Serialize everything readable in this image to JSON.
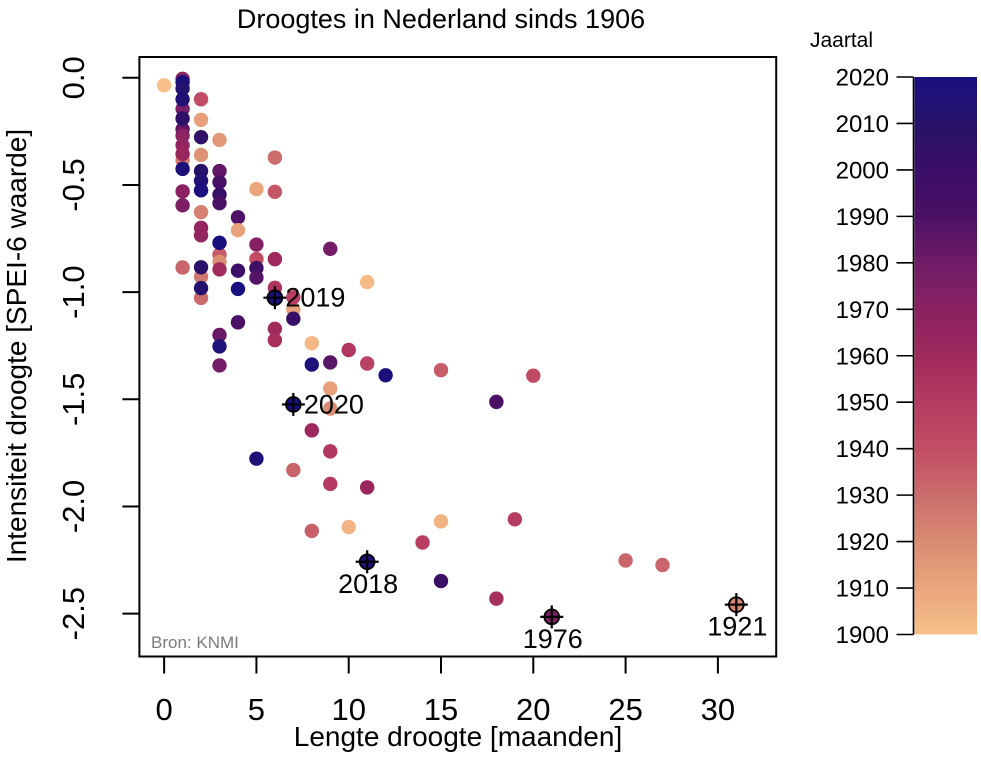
{
  "title": "Droogtes in Nederland sinds 1906",
  "source_note": "Bron: KNMI",
  "chart_data": {
    "type": "scatter",
    "title": "Droogtes in Nederland sinds 1906",
    "xlabel": "Lengte droogte [maanden]",
    "ylabel": "Intensiteit droogte [SPEI-6 waarde]",
    "x_ticks": [
      0,
      5,
      10,
      15,
      20,
      25,
      30
    ],
    "y_ticks": [
      "0.0",
      "-0.5",
      "-1.0",
      "-1.5",
      "-2.0",
      "-2.5"
    ],
    "y_tick_values": [
      0.0,
      -0.5,
      -1.0,
      -1.5,
      -2.0,
      -2.5
    ],
    "xlim": [
      -1.34,
      33.16
    ],
    "ylim": [
      -2.7,
      0.097
    ],
    "grid": false,
    "background": "#ffffff",
    "point_color_by": "year",
    "marked_point_symbol": "circle-plus-cross",
    "marked_point_color": "#000000",
    "points": [
      {
        "x": 1,
        "y": -0.005,
        "year": 1968
      },
      {
        "x": 1,
        "y": -0.145,
        "year": 1977
      },
      {
        "x": 1,
        "y": -0.24,
        "year": 1984
      },
      {
        "x": 1,
        "y": -0.02,
        "year": 2018
      },
      {
        "x": 1,
        "y": -0.05,
        "year": 2012
      },
      {
        "x": 1,
        "y": -0.1,
        "year": 2015
      },
      {
        "x": 1,
        "y": -0.19,
        "year": 2006
      },
      {
        "x": 1,
        "y": -0.385,
        "year": 1925
      },
      {
        "x": 1,
        "y": -0.27,
        "year": 1968
      },
      {
        "x": 1,
        "y": -0.315,
        "year": 1966
      },
      {
        "x": 1,
        "y": -0.355,
        "year": 1963
      },
      {
        "x": 1,
        "y": -0.425,
        "year": 2017
      },
      {
        "x": 1,
        "y": -0.53,
        "year": 1969
      },
      {
        "x": 1,
        "y": -0.595,
        "year": 1975
      },
      {
        "x": 1,
        "y": -0.885,
        "year": 1932
      },
      {
        "x": 0,
        "y": -0.035,
        "year": 1900
      },
      {
        "x": 2,
        "y": -0.1,
        "year": 1941
      },
      {
        "x": 2,
        "y": -0.196,
        "year": 1912
      },
      {
        "x": 2,
        "y": -0.277,
        "year": 2005
      },
      {
        "x": 2,
        "y": -0.435,
        "year": 2010
      },
      {
        "x": 2,
        "y": -0.48,
        "year": 2014
      },
      {
        "x": 2,
        "y": -0.525,
        "year": 2019
      },
      {
        "x": 2,
        "y": -0.36,
        "year": 1917
      },
      {
        "x": 2,
        "y": -0.627,
        "year": 1923
      },
      {
        "x": 2,
        "y": -0.7,
        "year": 1965
      },
      {
        "x": 2,
        "y": -0.735,
        "year": 1966
      },
      {
        "x": 2,
        "y": -0.928,
        "year": 1926
      },
      {
        "x": 2,
        "y": -1.027,
        "year": 1931
      },
      {
        "x": 2,
        "y": -0.884,
        "year": 2008
      },
      {
        "x": 2,
        "y": -0.981,
        "year": 2013
      },
      {
        "x": 3,
        "y": -0.29,
        "year": 1915
      },
      {
        "x": 3,
        "y": -0.435,
        "year": 1984
      },
      {
        "x": 3,
        "y": -0.487,
        "year": 1992
      },
      {
        "x": 3,
        "y": -0.545,
        "year": 2002
      },
      {
        "x": 3,
        "y": -0.585,
        "year": 1991
      },
      {
        "x": 3,
        "y": -0.825,
        "year": 1936
      },
      {
        "x": 3,
        "y": -0.859,
        "year": 1919
      },
      {
        "x": 3,
        "y": -0.894,
        "year": 1959
      },
      {
        "x": 3,
        "y": -0.77,
        "year": 2019
      },
      {
        "x": 3,
        "y": -1.2,
        "year": 1982
      },
      {
        "x": 3,
        "y": -1.253,
        "year": 2016
      },
      {
        "x": 3,
        "y": -1.342,
        "year": 1978
      },
      {
        "x": 4,
        "y": -0.651,
        "year": 1989
      },
      {
        "x": 4,
        "y": -0.711,
        "year": 1911
      },
      {
        "x": 4,
        "y": -0.9,
        "year": 1998
      },
      {
        "x": 4,
        "y": -0.985,
        "year": 2020
      },
      {
        "x": 4,
        "y": -1.141,
        "year": 1990
      },
      {
        "x": 5,
        "y": -0.519,
        "year": 1910
      },
      {
        "x": 5,
        "y": -0.778,
        "year": 1972
      },
      {
        "x": 5,
        "y": -0.845,
        "year": 1941
      },
      {
        "x": 5,
        "y": -0.888,
        "year": 1998
      },
      {
        "x": 5,
        "y": -0.932,
        "year": 1987
      },
      {
        "x": 5,
        "y": -1.777,
        "year": 2016
      },
      {
        "x": 6,
        "y": -0.372,
        "year": 1930
      },
      {
        "x": 6,
        "y": -0.532,
        "year": 1937
      },
      {
        "x": 6,
        "y": -0.846,
        "year": 1961
      },
      {
        "x": 6,
        "y": -0.98,
        "year": 1953
      },
      {
        "x": 6,
        "y": -1.026,
        "year": 2019,
        "label": "2019",
        "label_side": "right",
        "marked": true
      },
      {
        "x": 6,
        "y": -1.171,
        "year": 1960
      },
      {
        "x": 6,
        "y": -1.224,
        "year": 1957
      },
      {
        "x": 7,
        "y": -1.08,
        "year": 1911
      },
      {
        "x": 7,
        "y": -1.024,
        "year": 1948
      },
      {
        "x": 7,
        "y": -1.124,
        "year": 2001
      },
      {
        "x": 7,
        "y": -1.524,
        "year": 2020,
        "label": "2020",
        "label_side": "right",
        "marked": true
      },
      {
        "x": 7,
        "y": -1.83,
        "year": 1933
      },
      {
        "x": 8,
        "y": -1.238,
        "year": 1903
      },
      {
        "x": 8,
        "y": -1.338,
        "year": 2017
      },
      {
        "x": 8,
        "y": -1.645,
        "year": 1962
      },
      {
        "x": 8,
        "y": -2.114,
        "year": 1934
      },
      {
        "x": 9,
        "y": -0.798,
        "year": 1978
      },
      {
        "x": 9,
        "y": -1.328,
        "year": 1986
      },
      {
        "x": 9,
        "y": -1.45,
        "year": 1912
      },
      {
        "x": 9,
        "y": -1.543,
        "year": 1919
      },
      {
        "x": 9,
        "y": -1.743,
        "year": 1952
      },
      {
        "x": 9,
        "y": -1.895,
        "year": 1950
      },
      {
        "x": 10,
        "y": -1.27,
        "year": 1952
      },
      {
        "x": 10,
        "y": -2.096,
        "year": 1904
      },
      {
        "x": 11,
        "y": -0.953,
        "year": 1902
      },
      {
        "x": 11,
        "y": -1.333,
        "year": 1946
      },
      {
        "x": 11,
        "y": -1.911,
        "year": 1963
      },
      {
        "x": 11,
        "y": -2.258,
        "year": 2018,
        "label": "2018",
        "label_side": "below",
        "marked": true
      },
      {
        "x": 12,
        "y": -1.388,
        "year": 2018
      },
      {
        "x": 15,
        "y": -1.364,
        "year": 1935
      },
      {
        "x": 14,
        "y": -2.168,
        "year": 1948
      },
      {
        "x": 15,
        "y": -2.07,
        "year": 1905
      },
      {
        "x": 15,
        "y": -2.348,
        "year": 1999
      },
      {
        "x": 18,
        "y": -1.512,
        "year": 1990
      },
      {
        "x": 18,
        "y": -2.43,
        "year": 1956
      },
      {
        "x": 19,
        "y": -2.06,
        "year": 1949
      },
      {
        "x": 20,
        "y": -1.39,
        "year": 1942
      },
      {
        "x": 21,
        "y": -2.515,
        "year": 1976,
        "label": "1976",
        "label_side": "below",
        "marked": true
      },
      {
        "x": 25,
        "y": -2.252,
        "year": 1932
      },
      {
        "x": 27,
        "y": -2.273,
        "year": 1932
      },
      {
        "x": 31,
        "y": -2.458,
        "year": 1921,
        "label": "1921",
        "label_side": "below",
        "marked": true
      }
    ]
  },
  "colorbar": {
    "title": "Jaartal",
    "min": 1900,
    "max": 2020,
    "tick_labels": [
      "2020",
      "2010",
      "2000",
      "1990",
      "1980",
      "1970",
      "1960",
      "1950",
      "1940",
      "1930",
      "1920",
      "1910",
      "1900"
    ],
    "gradient_stops": [
      {
        "year": 1900,
        "color": "#f7c08a"
      },
      {
        "year": 1910,
        "color": "#eaa57d"
      },
      {
        "year": 1920,
        "color": "#d98b72"
      },
      {
        "year": 1930,
        "color": "#cb6c6d"
      },
      {
        "year": 1940,
        "color": "#c24e63"
      },
      {
        "year": 1950,
        "color": "#b53a62"
      },
      {
        "year": 1960,
        "color": "#a02a5c"
      },
      {
        "year": 1970,
        "color": "#8a2162"
      },
      {
        "year": 1980,
        "color": "#6f1c67"
      },
      {
        "year": 1990,
        "color": "#4b1065"
      },
      {
        "year": 2000,
        "color": "#3a0e66"
      },
      {
        "year": 2010,
        "color": "#271269"
      },
      {
        "year": 2020,
        "color": "#181080"
      }
    ]
  }
}
